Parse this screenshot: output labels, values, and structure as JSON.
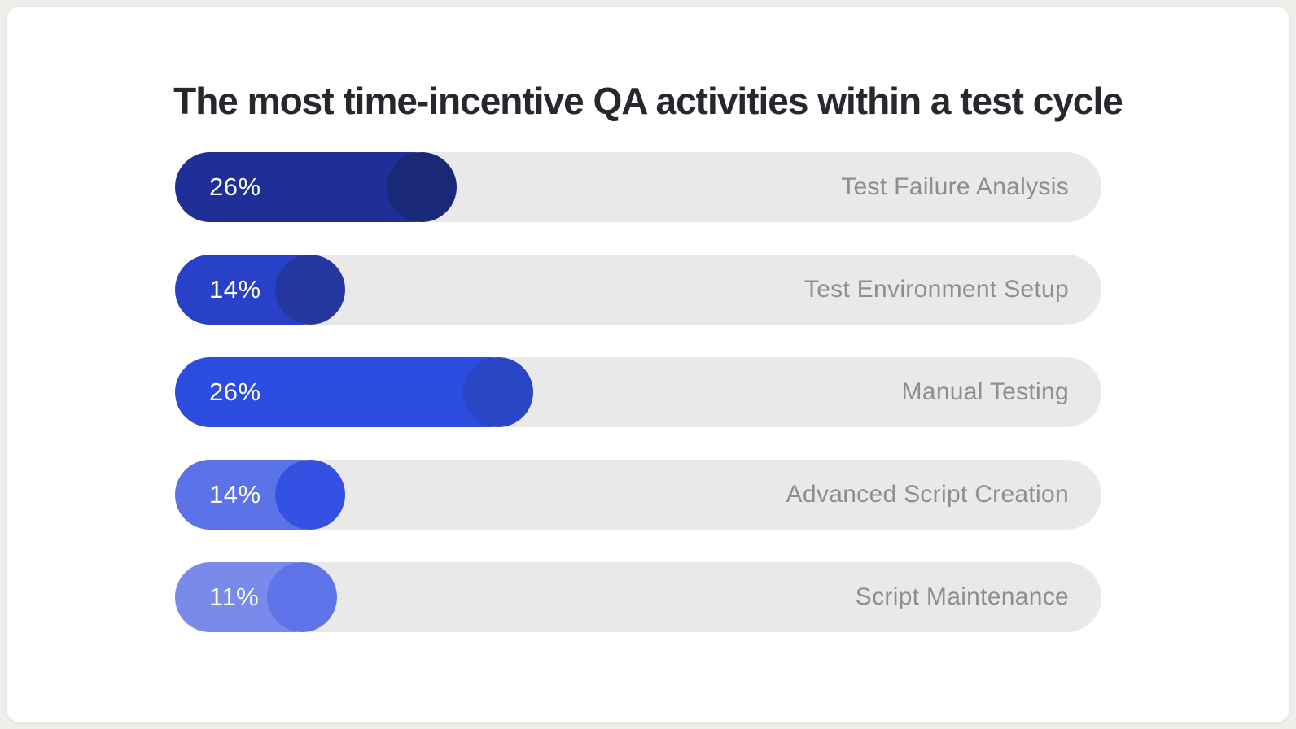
{
  "page": {
    "background_color": "#f0eeea",
    "card_background": "#ffffff",
    "card_border_color": "#e9e6e1",
    "track_color": "#e9e9e9",
    "title_color": "#26282e",
    "category_label_color": "#8e8e92",
    "value_label_color": "#ffffff"
  },
  "title": "The most time-incentive QA activities within a test cycle",
  "chart_data": {
    "type": "bar",
    "orientation": "horizontal",
    "title": "The most time-incentive QA activities within a test cycle",
    "unit": "%",
    "categories": [
      "Test Failure Analysis",
      "Test Environment Setup",
      "Manual Testing",
      "Advanced Script Creation",
      "Script Maintenance"
    ],
    "values": [
      26,
      14,
      26,
      14,
      11
    ],
    "legend": "none",
    "grid": "off",
    "rows": [
      {
        "label": "Test Failure Analysis",
        "value": 26,
        "pct_label": "26%",
        "fill_color": "#202f97",
        "knob_color": "#1a2878",
        "visual_width_pct": 29.5
      },
      {
        "label": "Test Environment Setup",
        "value": 14,
        "pct_label": "14%",
        "fill_color": "#2941c9",
        "knob_color": "#24379e",
        "visual_width_pct": 17.5
      },
      {
        "label": "Manual Testing",
        "value": 26,
        "pct_label": "26%",
        "fill_color": "#2c4de0",
        "knob_color": "#2a46c4",
        "visual_width_pct": 37.8
      },
      {
        "label": "Advanced Script Creation",
        "value": 14,
        "pct_label": "14%",
        "fill_color": "#5b72e8",
        "knob_color": "#3351e2",
        "visual_width_pct": 17.5
      },
      {
        "label": "Script Maintenance",
        "value": 11,
        "pct_label": "11%",
        "fill_color": "#7a8aeb",
        "knob_color": "#5e74e8",
        "visual_width_pct": 16.6
      }
    ]
  }
}
